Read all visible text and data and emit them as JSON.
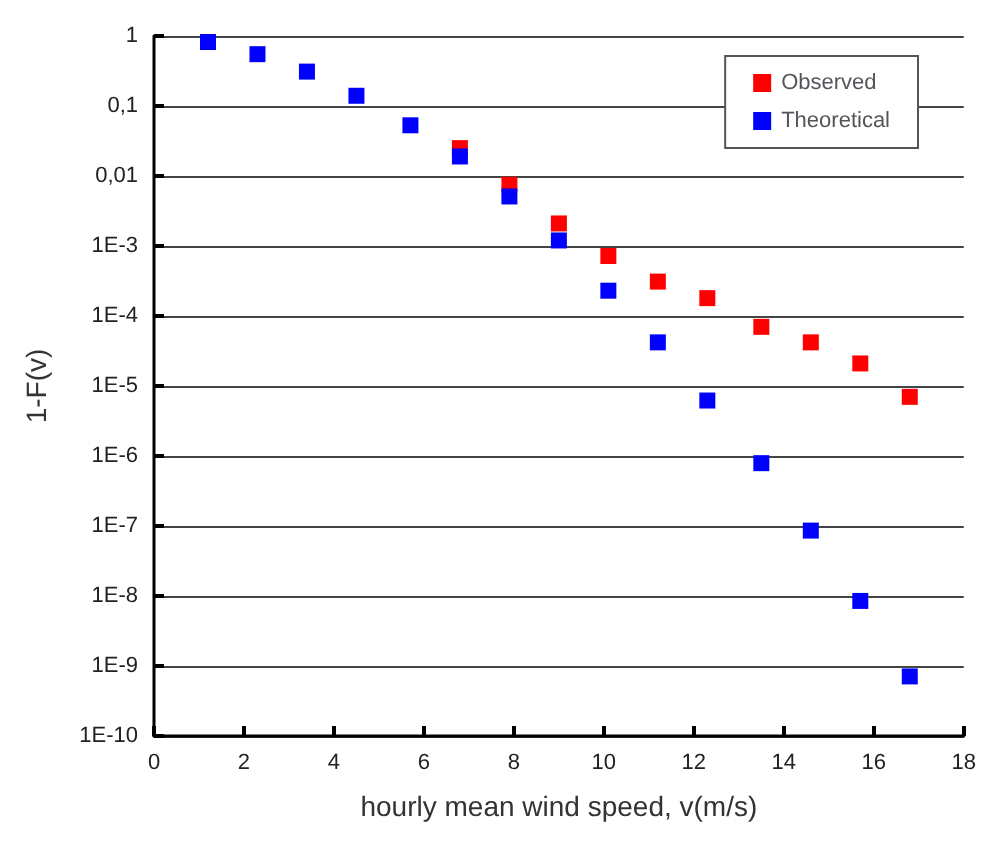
{
  "chart_data": {
    "type": "scatter",
    "xlabel": "hourly mean wind speed, v(m/s)",
    "ylabel": "1-F(v)",
    "x": [
      1.2,
      2.3,
      3.4,
      4.5,
      5.7,
      6.8,
      7.9,
      9.0,
      10.1,
      11.2,
      12.3,
      13.5,
      14.6,
      15.7,
      16.8
    ],
    "series": [
      {
        "name": "Observed",
        "color": "#ff0000",
        "values": [
          null,
          null,
          null,
          null,
          null,
          0.025,
          0.0075,
          0.0021,
          0.00072,
          0.00031,
          0.00018,
          7e-05,
          4.2e-05,
          2.1e-05,
          7e-06
        ]
      },
      {
        "name": "Theoretical",
        "color": "#0000ff",
        "values": [
          0.82,
          0.55,
          0.31,
          0.14,
          0.053,
          0.019,
          0.0051,
          0.0012,
          0.00023,
          4.2e-05,
          6.2e-06,
          7.9e-07,
          8.6e-08,
          8.5e-09,
          7.1e-10
        ]
      }
    ],
    "xlim": [
      0,
      18
    ],
    "xticks": [
      0,
      2,
      4,
      6,
      8,
      10,
      12,
      14,
      16,
      18
    ],
    "ylim": [
      1e-10,
      1
    ],
    "log": true,
    "yticks": [
      {
        "value": 1e-10,
        "label": "1E-10"
      },
      {
        "value": 1e-09,
        "label": "1E-9"
      },
      {
        "value": 1e-08,
        "label": "1E-8"
      },
      {
        "value": 1e-07,
        "label": "1E-7"
      },
      {
        "value": 1e-06,
        "label": "1E-6"
      },
      {
        "value": 1e-05,
        "label": "1E-5"
      },
      {
        "value": 0.0001,
        "label": "1E-4"
      },
      {
        "value": 0.001,
        "label": "1E-3"
      },
      {
        "value": 0.01,
        "label": "0,01"
      },
      {
        "value": 0.1,
        "label": "0,1"
      },
      {
        "value": 1,
        "label": "1"
      }
    ],
    "grid": "y",
    "legend": "top right",
    "marker": "square"
  }
}
